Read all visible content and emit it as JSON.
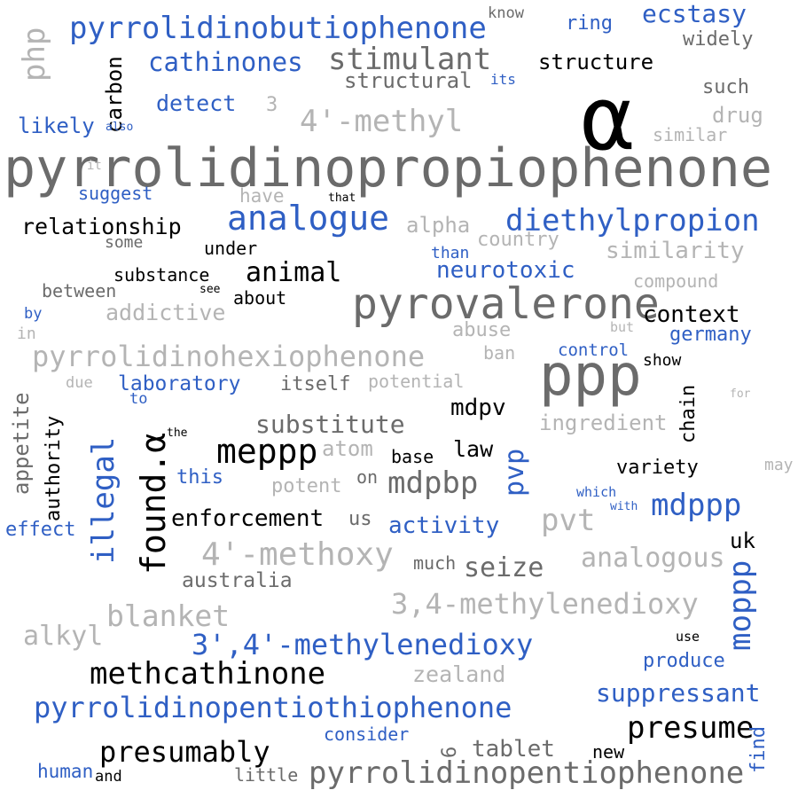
{
  "colors": {
    "dark": "#000000",
    "grey": "#6b6b6b",
    "light": "#b4b4b4",
    "blue": "#2f5fc4"
  },
  "words": [
    {
      "text": "pyrrolidinopropiophenone",
      "color": "grey"
    },
    {
      "text": "α",
      "color": "dark"
    },
    {
      "text": "ppp",
      "color": "grey"
    },
    {
      "text": "pyrovalerone",
      "color": "grey"
    },
    {
      "text": "pyrrolidinobutiophenone",
      "color": "blue"
    },
    {
      "text": "ecstasy",
      "color": "blue"
    },
    {
      "text": "know",
      "color": "grey"
    },
    {
      "text": "ring",
      "color": "blue"
    },
    {
      "text": "widely",
      "color": "grey"
    },
    {
      "text": "php",
      "color": "light"
    },
    {
      "text": "carbon",
      "color": "dark"
    },
    {
      "text": "cathinones",
      "color": "blue"
    },
    {
      "text": "stimulant",
      "color": "grey"
    },
    {
      "text": "structure",
      "color": "dark"
    },
    {
      "text": "structural",
      "color": "grey"
    },
    {
      "text": "its",
      "color": "blue"
    },
    {
      "text": "such",
      "color": "grey"
    },
    {
      "text": "detect",
      "color": "blue"
    },
    {
      "text": "3",
      "color": "light"
    },
    {
      "text": "drug",
      "color": "light"
    },
    {
      "text": "4'-methyl",
      "color": "light"
    },
    {
      "text": "likely",
      "color": "blue"
    },
    {
      "text": "also",
      "color": "blue"
    },
    {
      "text": "similar",
      "color": "light"
    },
    {
      "text": "it",
      "color": "light"
    },
    {
      "text": "suggest",
      "color": "blue"
    },
    {
      "text": "have",
      "color": "light"
    },
    {
      "text": "that",
      "color": "dark"
    },
    {
      "text": "analogue",
      "color": "blue"
    },
    {
      "text": "diethylpropion",
      "color": "blue"
    },
    {
      "text": "relationship",
      "color": "dark"
    },
    {
      "text": "alpha",
      "color": "light"
    },
    {
      "text": "country",
      "color": "light"
    },
    {
      "text": "some",
      "color": "grey"
    },
    {
      "text": "under",
      "color": "dark"
    },
    {
      "text": "than",
      "color": "blue"
    },
    {
      "text": "similarity",
      "color": "light"
    },
    {
      "text": "substance",
      "color": "dark"
    },
    {
      "text": "animal",
      "color": "dark"
    },
    {
      "text": "neurotoxic",
      "color": "blue"
    },
    {
      "text": "compound",
      "color": "light"
    },
    {
      "text": "between",
      "color": "grey"
    },
    {
      "text": "see",
      "color": "dark"
    },
    {
      "text": "about",
      "color": "dark"
    },
    {
      "text": "by",
      "color": "blue"
    },
    {
      "text": "addictive",
      "color": "light"
    },
    {
      "text": "context",
      "color": "dark"
    },
    {
      "text": "in",
      "color": "light"
    },
    {
      "text": "abuse",
      "color": "light"
    },
    {
      "text": "but",
      "color": "light"
    },
    {
      "text": "germany",
      "color": "blue"
    },
    {
      "text": "pyrrolidinohexiophenone",
      "color": "light"
    },
    {
      "text": "ban",
      "color": "light"
    },
    {
      "text": "control",
      "color": "blue"
    },
    {
      "text": "show",
      "color": "dark"
    },
    {
      "text": "due",
      "color": "light"
    },
    {
      "text": "laboratory",
      "color": "blue"
    },
    {
      "text": "itself",
      "color": "grey"
    },
    {
      "text": "potential",
      "color": "light"
    },
    {
      "text": "to",
      "color": "blue"
    },
    {
      "text": "chain",
      "color": "dark"
    },
    {
      "text": "for",
      "color": "light"
    },
    {
      "text": "appetite",
      "color": "grey"
    },
    {
      "text": "authority",
      "color": "dark"
    },
    {
      "text": "substitute",
      "color": "grey"
    },
    {
      "text": "mdpv",
      "color": "dark"
    },
    {
      "text": "ingredient",
      "color": "light"
    },
    {
      "text": "the",
      "color": "dark"
    },
    {
      "text": "found.α",
      "color": "dark"
    },
    {
      "text": "meppp",
      "color": "dark"
    },
    {
      "text": "atom",
      "color": "light"
    },
    {
      "text": "base",
      "color": "dark"
    },
    {
      "text": "law",
      "color": "dark"
    },
    {
      "text": "illegal",
      "color": "blue"
    },
    {
      "text": "pvp",
      "color": "blue"
    },
    {
      "text": "variety",
      "color": "dark"
    },
    {
      "text": "may",
      "color": "light"
    },
    {
      "text": "this",
      "color": "blue"
    },
    {
      "text": "potent",
      "color": "light"
    },
    {
      "text": "on",
      "color": "grey"
    },
    {
      "text": "mdpbp",
      "color": "grey"
    },
    {
      "text": "which",
      "color": "blue"
    },
    {
      "text": "with",
      "color": "blue"
    },
    {
      "text": "mdppp",
      "color": "blue"
    },
    {
      "text": "effect",
      "color": "blue"
    },
    {
      "text": "enforcement",
      "color": "dark"
    },
    {
      "text": "us",
      "color": "grey"
    },
    {
      "text": "activity",
      "color": "blue"
    },
    {
      "text": "pvt",
      "color": "light"
    },
    {
      "text": "uk",
      "color": "dark"
    },
    {
      "text": "4'-methoxy",
      "color": "light"
    },
    {
      "text": "much",
      "color": "grey"
    },
    {
      "text": "seize",
      "color": "grey"
    },
    {
      "text": "analogous",
      "color": "light"
    },
    {
      "text": "moppp",
      "color": "blue"
    },
    {
      "text": "australia",
      "color": "grey"
    },
    {
      "text": "3,4-methylenedioxy",
      "color": "light"
    },
    {
      "text": "blanket",
      "color": "light"
    },
    {
      "text": "alkyl",
      "color": "light"
    },
    {
      "text": "3',4'-methylenedioxy",
      "color": "blue"
    },
    {
      "text": "use",
      "color": "dark"
    },
    {
      "text": "produce",
      "color": "blue"
    },
    {
      "text": "methcathinone",
      "color": "dark"
    },
    {
      "text": "zealand",
      "color": "light"
    },
    {
      "text": "suppressant",
      "color": "blue"
    },
    {
      "text": "pyrrolidinopentiothiophenone",
      "color": "blue"
    },
    {
      "text": "presume",
      "color": "dark"
    },
    {
      "text": "consider",
      "color": "blue"
    },
    {
      "text": "find",
      "color": "blue"
    },
    {
      "text": "presumably",
      "color": "dark"
    },
    {
      "text": "6",
      "color": "grey"
    },
    {
      "text": "tablet",
      "color": "grey"
    },
    {
      "text": "new",
      "color": "dark"
    },
    {
      "text": "human",
      "color": "blue"
    },
    {
      "text": "and",
      "color": "dark"
    },
    {
      "text": "little",
      "color": "grey"
    },
    {
      "text": "pyrrolidinopentiophenone",
      "color": "grey"
    }
  ]
}
